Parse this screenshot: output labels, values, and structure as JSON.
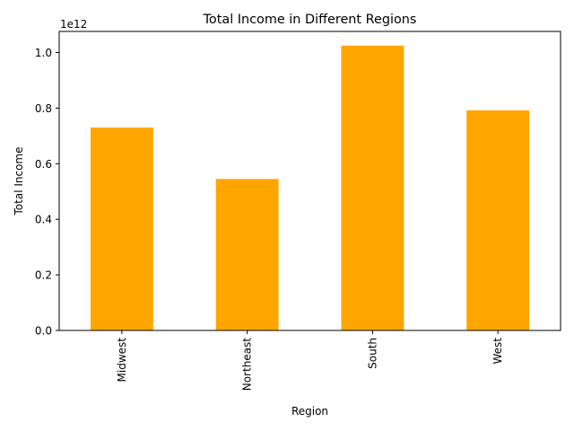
{
  "chart_data": {
    "type": "bar",
    "title": "Total Income in Different Regions",
    "xlabel": "Region",
    "ylabel": "Total Income",
    "offset_text": "1e12",
    "scale": 1000000000000.0,
    "categories": [
      "Midwest",
      "Northeast",
      "South",
      "West"
    ],
    "values": [
      730000000000,
      545000000000,
      1025000000000,
      792000000000
    ],
    "ylim": [
      0,
      1.076
    ],
    "yticks": [
      0.0,
      0.2,
      0.4,
      0.6,
      0.8,
      1.0
    ],
    "ytick_labels": [
      "0.0",
      "0.2",
      "0.4",
      "0.6",
      "0.8",
      "1.0"
    ],
    "bar_color": "#ffa500",
    "grid": false,
    "legend": "none"
  }
}
